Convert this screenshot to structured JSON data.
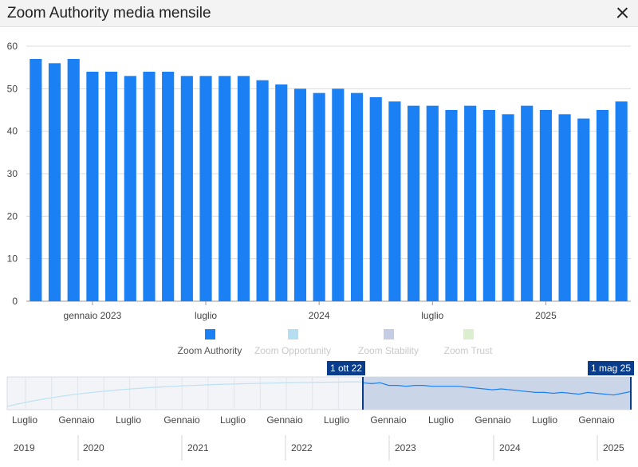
{
  "header": {
    "title": "Zoom Authority media mensile"
  },
  "chart_data": {
    "type": "bar",
    "title": "Zoom Authority media mensile",
    "xlabel": "",
    "ylabel": "",
    "ylim": [
      0,
      60
    ],
    "yticks": [
      0,
      10,
      20,
      30,
      40,
      50,
      60
    ],
    "grid": true,
    "legend_position": "bottom",
    "x": [
      "2022-10",
      "2022-11",
      "2022-12",
      "2023-01",
      "2023-02",
      "2023-03",
      "2023-04",
      "2023-05",
      "2023-06",
      "2023-07",
      "2023-08",
      "2023-09",
      "2023-10",
      "2023-11",
      "2023-12",
      "2024-01",
      "2024-02",
      "2024-03",
      "2024-04",
      "2024-05",
      "2024-06",
      "2024-07",
      "2024-08",
      "2024-09",
      "2024-10",
      "2024-11",
      "2024-12",
      "2025-01",
      "2025-02",
      "2025-03",
      "2025-04",
      "2025-05"
    ],
    "x_ticks": [
      {
        "label": "gennaio 2023",
        "index": 3
      },
      {
        "label": "luglio",
        "index": 9
      },
      {
        "label": "2024",
        "index": 15
      },
      {
        "label": "luglio",
        "index": 21
      },
      {
        "label": "2025",
        "index": 27
      }
    ],
    "series": [
      {
        "name": "Zoom Authority",
        "color": "#1a80f3",
        "values": [
          57,
          56,
          57,
          54,
          54,
          53,
          54,
          54,
          53,
          53,
          53,
          53,
          52,
          51,
          50,
          49,
          50,
          49,
          48,
          47,
          46,
          46,
          45,
          46,
          45,
          44,
          46,
          45,
          44,
          43,
          45,
          47
        ]
      }
    ],
    "legend": [
      {
        "name": "Zoom Authority",
        "color": "#1a80f3",
        "active": true
      },
      {
        "name": "Zoom Opportunity",
        "color": "#b5def3",
        "active": false
      },
      {
        "name": "Zoom Stability",
        "color": "#c4cde3",
        "active": false
      },
      {
        "name": "Zoom Trust",
        "color": "#dbeece",
        "active": false
      }
    ]
  },
  "navigator": {
    "range_start_label": "1 ott 22",
    "range_end_label": "1 mag 25",
    "month_labels": [
      "Luglio",
      "Gennaio",
      "Luglio",
      "Gennaio",
      "Luglio",
      "Gennaio",
      "Luglio",
      "Gennaio",
      "Luglio",
      "Gennaio",
      "Luglio",
      "Gennaio"
    ],
    "year_labels": [
      "2019",
      "2020",
      "2021",
      "2022",
      "2023",
      "2024",
      "2025"
    ]
  }
}
